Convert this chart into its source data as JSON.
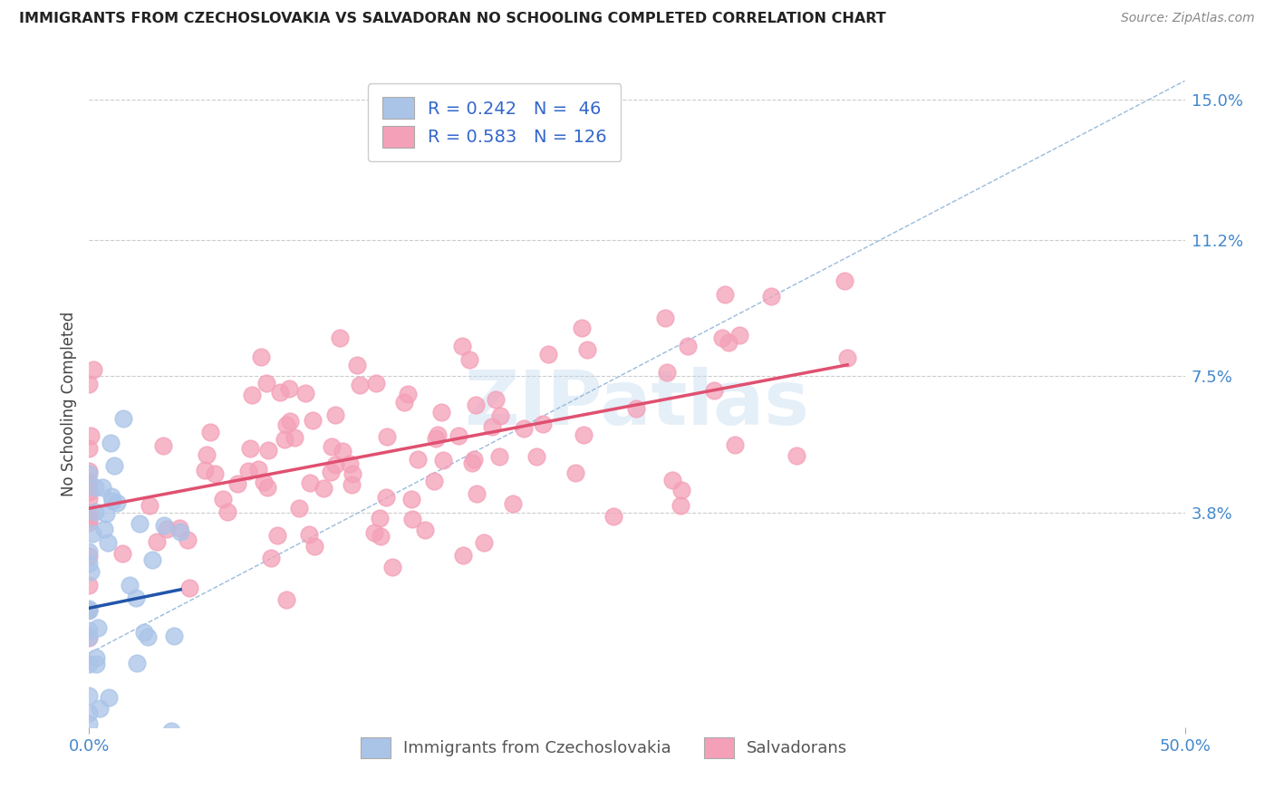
{
  "title": "IMMIGRANTS FROM CZECHOSLOVAKIA VS SALVADORAN NO SCHOOLING COMPLETED CORRELATION CHART",
  "source": "Source: ZipAtlas.com",
  "ylabel": "No Schooling Completed",
  "xlim": [
    0.0,
    0.5
  ],
  "ylim": [
    -0.02,
    0.155
  ],
  "yticks": [
    0.038,
    0.075,
    0.112,
    0.15
  ],
  "yticklabels": [
    "3.8%",
    "7.5%",
    "11.2%",
    "15.0%"
  ],
  "xticks": [
    0.0,
    0.5
  ],
  "xticklabels": [
    "0.0%",
    "50.0%"
  ],
  "watermark": "ZIPatlas",
  "blue_R": 0.242,
  "blue_N": 46,
  "pink_R": 0.583,
  "pink_N": 126,
  "blue_color": "#aac4e8",
  "pink_color": "#f4a0b8",
  "blue_line_color": "#2255aa",
  "pink_line_color": "#e05070",
  "diagonal_color": "#99bbdd",
  "background_color": "#ffffff",
  "grid_color": "#cccccc",
  "title_color": "#222222",
  "right_label_color": "#4488cc",
  "bottom_label_color": "#555555",
  "legend_label_color": "#3366cc",
  "source_color": "#888888"
}
